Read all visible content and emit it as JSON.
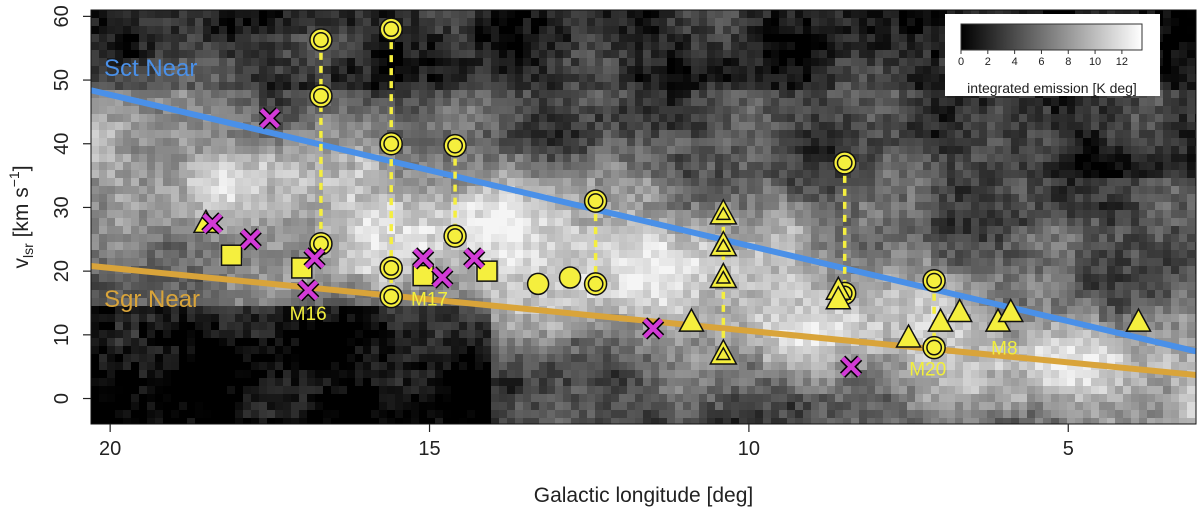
{
  "chart_data": {
    "type": "scatter",
    "title": "",
    "xlabel": "Galactic longitude [deg]",
    "ylabel": "v_lsr [km s^-1]",
    "ylabel_parts": {
      "v": "v",
      "sub": "lsr",
      "unit": " [km s",
      "exp": "−1",
      "close": "]"
    },
    "xlim": [
      20.3,
      3.0
    ],
    "ylim": [
      -4,
      61
    ],
    "xticks": [
      20,
      15,
      10,
      5
    ],
    "yticks": [
      0,
      10,
      20,
      30,
      40,
      50,
      60
    ],
    "background": "grayscale integrated CO emission map (position-velocity)",
    "colorbar": {
      "title": "integrated emission [K deg]",
      "ticks": [
        0,
        2,
        4,
        6,
        8,
        10,
        12
      ],
      "range": [
        0,
        13.5
      ],
      "colors": [
        "#000000",
        "#ffffff"
      ]
    },
    "lines": [
      {
        "name": "Sct Near",
        "color": "#4a90e8",
        "x": [
          20.3,
          3.0
        ],
        "y": [
          48.4,
          7.4
        ]
      },
      {
        "name": "Sgr Near",
        "color": "#d9a43a",
        "x": [
          20.3,
          3.0
        ],
        "y": [
          20.8,
          3.7
        ]
      }
    ],
    "series": [
      {
        "name": "ring circles",
        "marker": "ring",
        "points": [
          [
            16.7,
            56.3
          ],
          [
            16.7,
            47.5
          ],
          [
            16.7,
            24.3
          ],
          [
            15.6,
            58.0
          ],
          [
            15.6,
            40.0
          ],
          [
            15.6,
            20.5
          ],
          [
            15.6,
            16.0
          ],
          [
            14.6,
            39.7
          ],
          [
            14.6,
            25.5
          ],
          [
            12.4,
            31.0
          ],
          [
            12.4,
            18.0
          ],
          [
            8.5,
            37.0
          ],
          [
            8.5,
            16.5
          ],
          [
            7.1,
            18.5
          ],
          [
            7.1,
            8.0
          ]
        ]
      },
      {
        "name": "filled circles",
        "marker": "circle",
        "points": [
          [
            13.3,
            18.0
          ],
          [
            12.8,
            19.0
          ]
        ]
      },
      {
        "name": "squares",
        "marker": "square",
        "points": [
          [
            18.1,
            22.5
          ],
          [
            17.0,
            20.5
          ],
          [
            15.1,
            19.3
          ],
          [
            14.1,
            20.0
          ]
        ]
      },
      {
        "name": "filled triangles",
        "marker": "triangle",
        "points": [
          [
            18.5,
            27.5
          ],
          [
            10.9,
            12.0
          ],
          [
            8.6,
            17.0
          ],
          [
            8.6,
            15.5
          ],
          [
            7.5,
            9.5
          ],
          [
            7.0,
            12.0
          ],
          [
            6.7,
            13.5
          ],
          [
            6.1,
            12.0
          ],
          [
            5.9,
            13.5
          ],
          [
            3.9,
            12.0
          ]
        ]
      },
      {
        "name": "hollow triangles",
        "marker": "triangle-hollow",
        "points": [
          [
            10.4,
            29.0
          ],
          [
            10.4,
            24.0
          ],
          [
            10.4,
            19.0
          ],
          [
            10.4,
            7.0
          ]
        ]
      },
      {
        "name": "crosses",
        "marker": "cross",
        "points": [
          [
            18.4,
            27.5
          ],
          [
            17.8,
            25.0
          ],
          [
            17.5,
            44.0
          ],
          [
            16.8,
            22.0
          ],
          [
            16.9,
            17.0
          ],
          [
            15.1,
            22.0
          ],
          [
            14.8,
            19.0
          ],
          [
            14.3,
            22.0
          ],
          [
            11.5,
            11.0
          ],
          [
            8.4,
            5.0
          ]
        ]
      }
    ],
    "connectors": [
      {
        "x": 16.7,
        "y": [
          56.3,
          24.3
        ]
      },
      {
        "x": 15.6,
        "y": [
          58.0,
          16.0
        ]
      },
      {
        "x": 14.6,
        "y": [
          39.7,
          25.5
        ]
      },
      {
        "x": 12.4,
        "y": [
          31.0,
          18.0
        ]
      },
      {
        "x": 10.4,
        "y": [
          29.0,
          7.0
        ]
      },
      {
        "x": 8.5,
        "y": [
          37.0,
          16.5
        ]
      },
      {
        "x": 7.1,
        "y": [
          18.5,
          8.0
        ]
      }
    ],
    "annotations": [
      {
        "text": "M16",
        "x": 16.9,
        "y": 12.3
      },
      {
        "text": "M17",
        "x": 15.0,
        "y": 14.6
      },
      {
        "text": "M20",
        "x": 7.2,
        "y": 3.6
      },
      {
        "text": "M8",
        "x": 6.0,
        "y": 6.9
      }
    ],
    "colors": {
      "marker_fill": "#f5ef3e",
      "cross": "#d23ad6",
      "connector": "#f5ef3e"
    }
  }
}
